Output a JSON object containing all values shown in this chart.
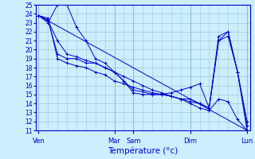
{
  "xlabel": "Température (°c)",
  "background_color": "#cceeff",
  "line_color": "#0000cc",
  "grid_color": "#99cccc",
  "ylim": [
    11,
    25
  ],
  "yticks": [
    11,
    12,
    13,
    14,
    15,
    16,
    17,
    18,
    19,
    20,
    21,
    22,
    23,
    24,
    25
  ],
  "day_labels": [
    "Ven",
    "",
    "Mar",
    "Sam",
    "",
    "Dim",
    "",
    "Lun"
  ],
  "day_positions": [
    0,
    4,
    8,
    10,
    13,
    16,
    18,
    22
  ],
  "tick_label_positions": [
    0,
    8,
    10,
    16,
    22
  ],
  "tick_labels": [
    "Ven",
    "Mar",
    "Sam",
    "Dim",
    "Lun"
  ],
  "num_points": 23,
  "series1": [
    23.8,
    23.3,
    19.5,
    19.0,
    19.0,
    18.5,
    18.5,
    18.0,
    17.5,
    16.5,
    15.5,
    15.3,
    15.0,
    15.0,
    15.2,
    15.5,
    15.8,
    16.2,
    13.5,
    21.0,
    21.5,
    17.5,
    11.0
  ],
  "series2": [
    23.8,
    23.0,
    25.0,
    25.0,
    22.5,
    21.0,
    19.0,
    18.5,
    17.5,
    16.5,
    15.2,
    15.0,
    15.0,
    15.0,
    14.8,
    14.5,
    14.5,
    14.0,
    13.5,
    21.0,
    22.0,
    17.5,
    11.5
  ],
  "series3": [
    23.8,
    23.2,
    21.0,
    19.5,
    19.2,
    18.8,
    18.5,
    18.0,
    17.5,
    17.0,
    16.5,
    16.0,
    15.5,
    15.2,
    14.8,
    14.5,
    14.0,
    13.5,
    13.2,
    14.5,
    14.2,
    12.2,
    11.0
  ],
  "series4": [
    23.8,
    23.5,
    19.0,
    18.5,
    18.2,
    18.0,
    17.5,
    17.2,
    16.5,
    16.2,
    15.8,
    15.5,
    15.2,
    15.0,
    14.8,
    14.5,
    14.2,
    14.0,
    13.5,
    21.5,
    22.0,
    17.5,
    12.0
  ],
  "trend": [
    23.8,
    11.0
  ]
}
